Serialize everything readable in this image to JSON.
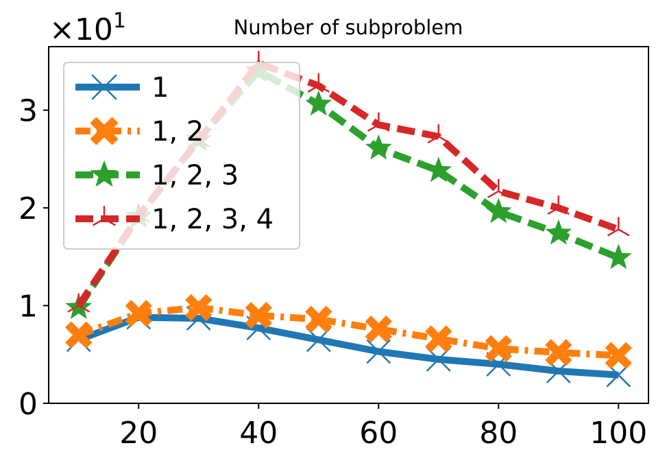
{
  "chart_data": {
    "type": "line",
    "title": "Number of subproblem",
    "xlabel": "",
    "ylabel": "",
    "y_multiplier": {
      "base": "×10",
      "exponent": "1"
    },
    "xlim": [
      5,
      105
    ],
    "ylim": [
      0,
      3.65
    ],
    "x_ticks": [
      20,
      40,
      60,
      80,
      100
    ],
    "y_ticks": [
      0,
      1,
      2,
      3
    ],
    "x_tick_labels": [
      "20",
      "40",
      "60",
      "80",
      "100"
    ],
    "y_tick_labels": [
      "0",
      "1",
      "2",
      "3"
    ],
    "legend_position": "upper-left",
    "grid": false,
    "x": [
      10,
      20,
      30,
      40,
      50,
      60,
      70,
      80,
      90,
      100
    ],
    "series": [
      {
        "name": "1",
        "color": "#1f77b4",
        "marker": "x",
        "dash": "solid",
        "values": [
          0.65,
          0.88,
          0.87,
          0.77,
          0.65,
          0.53,
          0.45,
          0.4,
          0.33,
          0.29
        ]
      },
      {
        "name": "1, 2",
        "color": "#ff7f0e",
        "marker": "X",
        "dash": "dashdot",
        "values": [
          0.7,
          0.92,
          0.98,
          0.9,
          0.86,
          0.76,
          0.66,
          0.56,
          0.52,
          0.49
        ]
      },
      {
        "name": "1, 2, 3",
        "color": "#2ca02c",
        "marker": "star",
        "dash": "dashed",
        "values": [
          0.98,
          1.91,
          2.7,
          3.4,
          3.06,
          2.61,
          2.38,
          1.96,
          1.74,
          1.49
        ]
      },
      {
        "name": "1, 2, 3, 4",
        "color": "#d62728",
        "marker": "tri_up",
        "dash": "dashed",
        "values": [
          1.0,
          1.92,
          2.69,
          3.48,
          3.25,
          2.85,
          2.73,
          2.17,
          2.0,
          1.78
        ]
      }
    ]
  }
}
